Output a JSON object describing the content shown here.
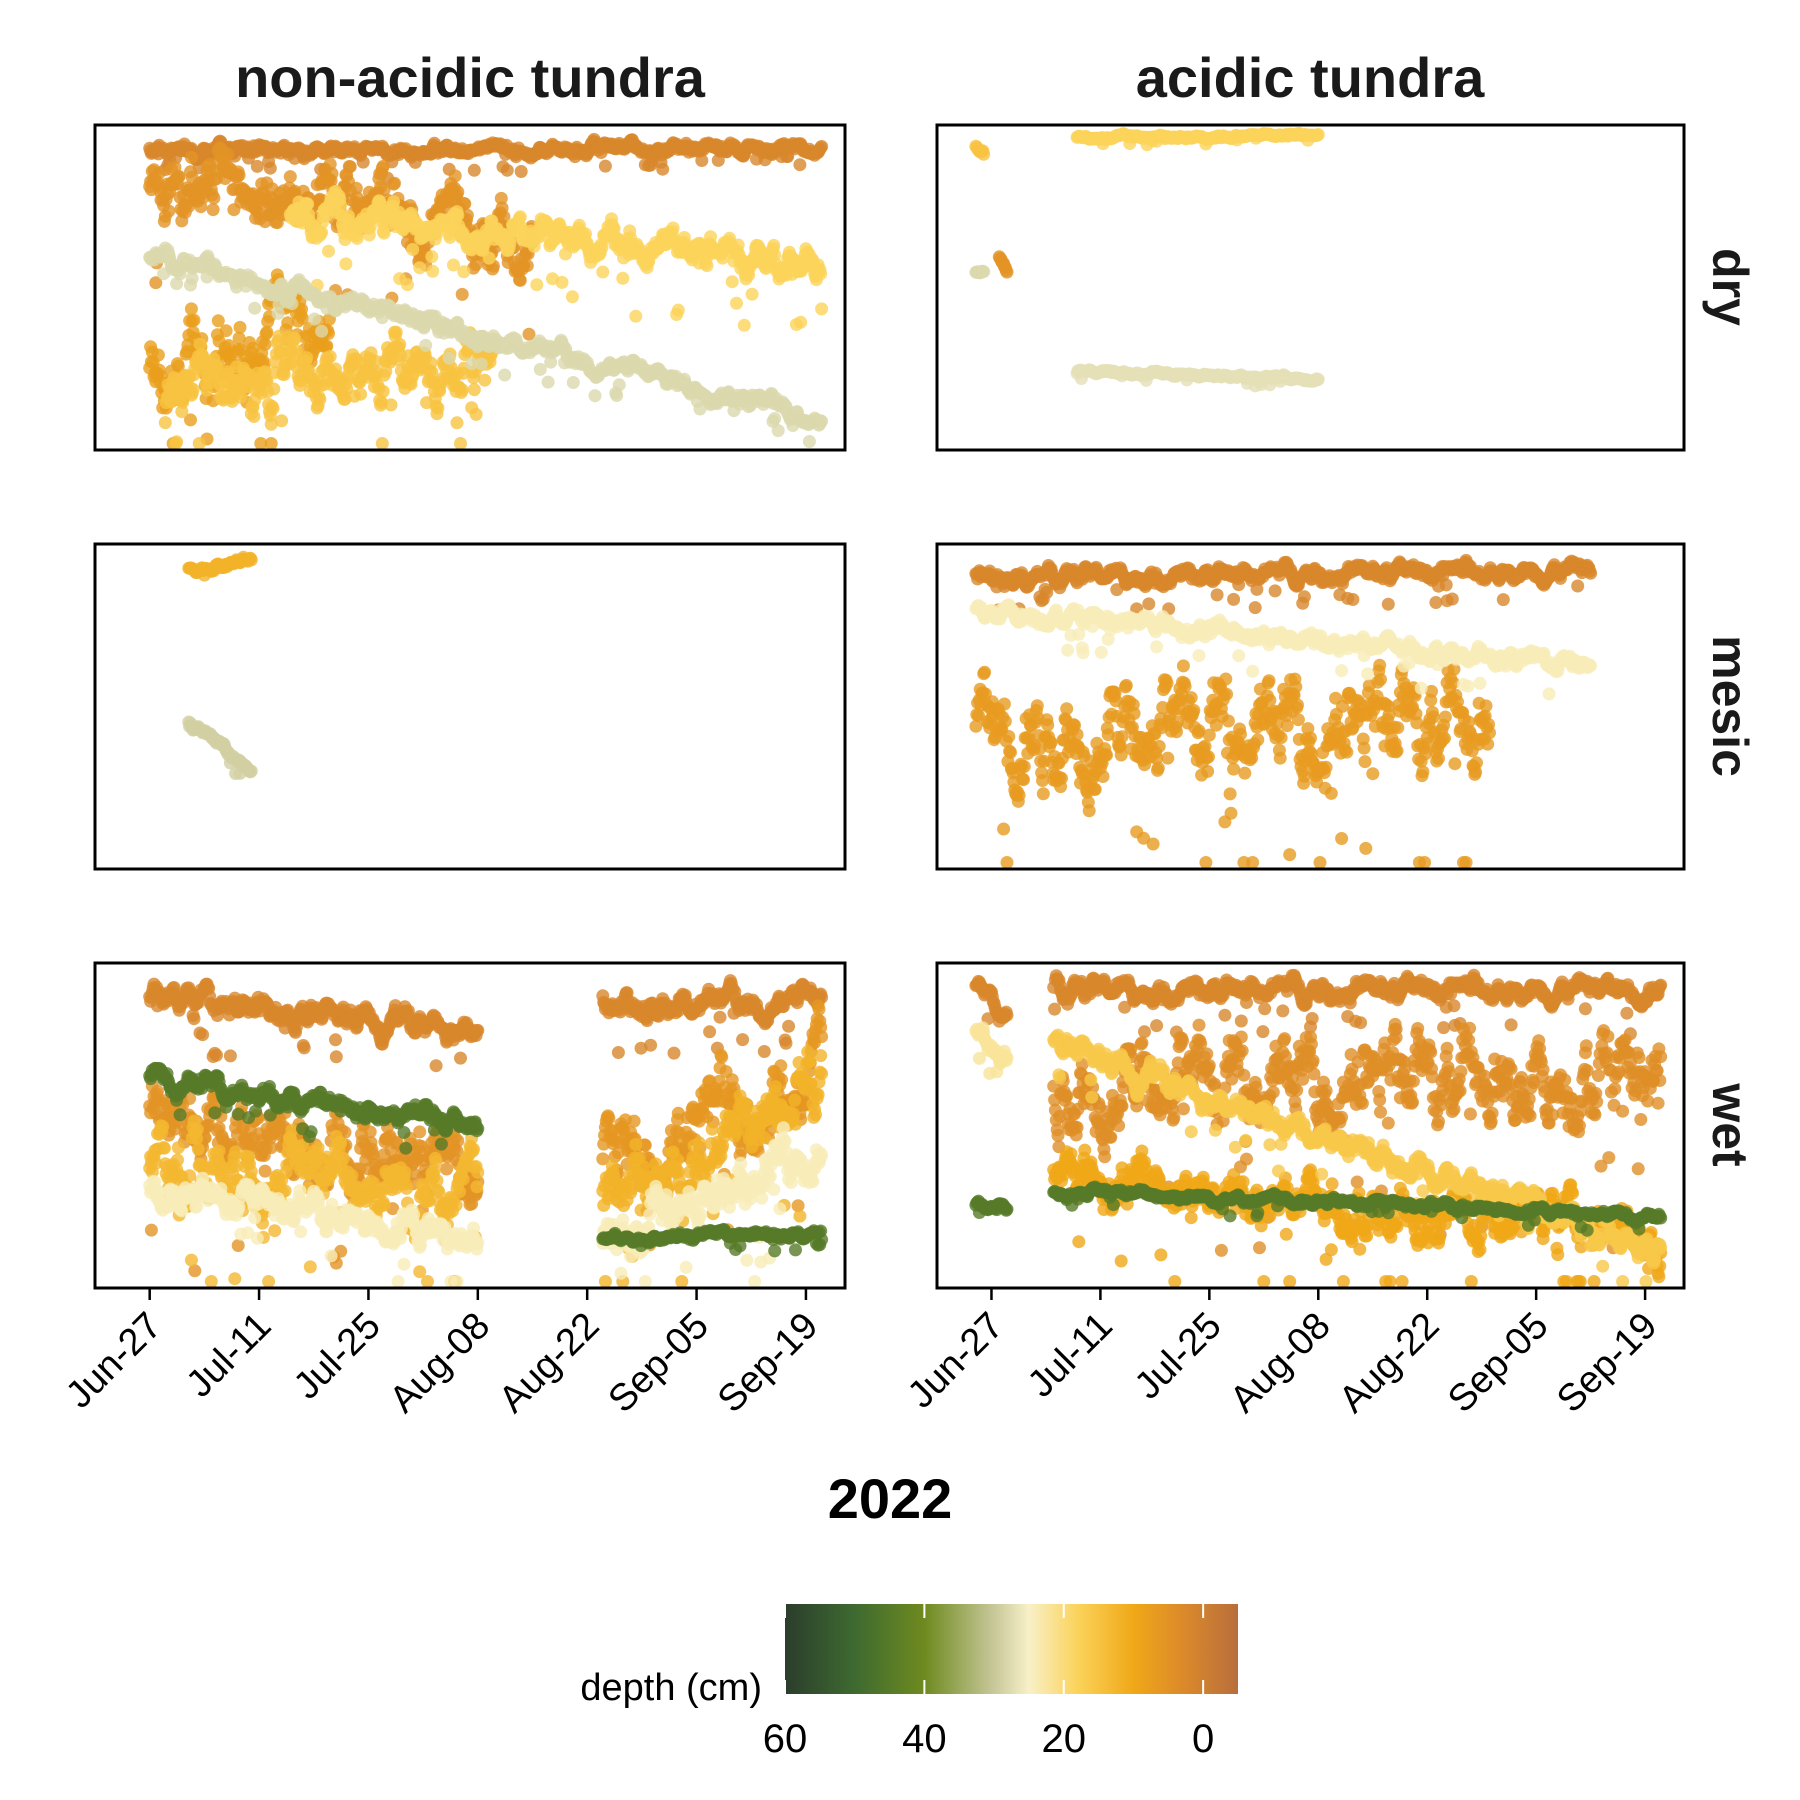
{
  "chart_data": {
    "type": "scatter",
    "x_axis_title": "2022",
    "x_ticks": [
      "Jun-27",
      "Jul-11",
      "Jul-25",
      "Aug-08",
      "Aug-22",
      "Sep-05",
      "Sep-19"
    ],
    "x_range": [
      "2022-06-20",
      "2022-09-24"
    ],
    "facet_columns": [
      "non-acidic tundra",
      "acidic tundra"
    ],
    "facet_rows": [
      "dry",
      "mesic",
      "wet"
    ],
    "y_axis": "unlabeled, no tick labels; relative soil condition per logger",
    "legend": {
      "title": "depth (cm)",
      "placement": "bottom",
      "ticks": [
        "60",
        "40",
        "20",
        "0"
      ],
      "range": [
        60,
        -5
      ],
      "colors": [
        {
          "depth": 60,
          "hex": "#2b3d2c"
        },
        {
          "depth": 50,
          "hex": "#3e6a30"
        },
        {
          "depth": 40,
          "hex": "#6e8a1f"
        },
        {
          "depth": 30,
          "hex": "#c8c89a"
        },
        {
          "depth": 25,
          "hex": "#f8f0c8"
        },
        {
          "depth": 18,
          "hex": "#fbd35a"
        },
        {
          "depth": 10,
          "hex": "#f0a818"
        },
        {
          "depth": 3,
          "hex": "#dc8a2a"
        },
        {
          "depth": -5,
          "hex": "#b86e3c"
        }
      ]
    },
    "panels": [
      {
        "column": "non-acidic tundra",
        "row": "dry",
        "series": [
          {
            "depth": 2,
            "start": "2022-06-27",
            "end": "2022-09-21",
            "y_start": 0.92,
            "y_end": 0.93,
            "noise": 0.03
          },
          {
            "depth": 5,
            "start": "2022-06-27",
            "end": "2022-08-15",
            "y_start": 0.82,
            "y_end": 0.66,
            "noise": 0.18
          },
          {
            "depth": 8,
            "start": "2022-06-27",
            "end": "2022-07-20",
            "y_start": 0.25,
            "y_end": 0.4,
            "noise": 0.2
          },
          {
            "depth": 15,
            "start": "2022-06-29",
            "end": "2022-08-10",
            "y_start": 0.2,
            "y_end": 0.28,
            "noise": 0.14
          },
          {
            "depth": 18,
            "start": "2022-07-15",
            "end": "2022-09-21",
            "y_start": 0.72,
            "y_end": 0.58,
            "noise": 0.08
          },
          {
            "depth": 28,
            "start": "2022-06-27",
            "end": "2022-09-21",
            "y_start": 0.6,
            "y_end": 0.1,
            "noise": 0.04
          }
        ]
      },
      {
        "column": "acidic tundra",
        "row": "dry",
        "series": [
          {
            "depth": 18,
            "start": "2022-07-08",
            "end": "2022-08-08",
            "y_start": 0.96,
            "y_end": 0.97,
            "noise": 0.01
          },
          {
            "depth": 27,
            "start": "2022-07-08",
            "end": "2022-08-08",
            "y_start": 0.24,
            "y_end": 0.22,
            "noise": 0.01
          },
          {
            "depth": 5,
            "start": "2022-06-28",
            "end": "2022-06-29",
            "y_start": 0.6,
            "y_end": 0.55,
            "noise": 0.02
          },
          {
            "depth": 15,
            "start": "2022-06-25",
            "end": "2022-06-26",
            "y_start": 0.93,
            "y_end": 0.9,
            "noise": 0.02
          },
          {
            "depth": 28,
            "start": "2022-06-25",
            "end": "2022-06-26",
            "y_start": 0.55,
            "y_end": 0.55,
            "noise": 0.01
          }
        ]
      },
      {
        "column": "non-acidic tundra",
        "row": "mesic",
        "series": [
          {
            "depth": 12,
            "start": "2022-07-02",
            "end": "2022-07-10",
            "y_start": 0.92,
            "y_end": 0.95,
            "noise": 0.02
          },
          {
            "depth": 29,
            "start": "2022-07-02",
            "end": "2022-07-10",
            "y_start": 0.45,
            "y_end": 0.3,
            "noise": 0.02
          }
        ]
      },
      {
        "column": "acidic tundra",
        "row": "mesic",
        "series": [
          {
            "depth": 2,
            "start": "2022-06-25",
            "end": "2022-09-12",
            "y_start": 0.9,
            "y_end": 0.92,
            "noise": 0.04
          },
          {
            "depth": 7,
            "start": "2022-06-25",
            "end": "2022-08-30",
            "y_start": 0.45,
            "y_end": 0.45,
            "noise": 0.22
          },
          {
            "depth": 24,
            "start": "2022-06-25",
            "end": "2022-09-12",
            "y_start": 0.8,
            "y_end": 0.63,
            "noise": 0.04
          }
        ]
      },
      {
        "column": "non-acidic tundra",
        "row": "wet",
        "series": [
          {
            "depth": 2,
            "start": "2022-06-27",
            "end": "2022-08-08",
            "y_start": 0.88,
            "y_end": 0.8,
            "noise": 0.06
          },
          {
            "depth": 5,
            "start": "2022-06-27",
            "end": "2022-08-08",
            "y_start": 0.55,
            "y_end": 0.35,
            "noise": 0.18
          },
          {
            "depth": 13,
            "start": "2022-06-27",
            "end": "2022-08-08",
            "y_start": 0.4,
            "y_end": 0.3,
            "noise": 0.16
          },
          {
            "depth": 24,
            "start": "2022-06-27",
            "end": "2022-08-08",
            "y_start": 0.3,
            "y_end": 0.15,
            "noise": 0.08
          },
          {
            "depth": 45,
            "start": "2022-06-27",
            "end": "2022-08-08",
            "y_start": 0.65,
            "y_end": 0.5,
            "noise": 0.05
          },
          {
            "depth": 2,
            "start": "2022-08-24",
            "end": "2022-09-21",
            "y_start": 0.88,
            "y_end": 0.88,
            "noise": 0.06
          },
          {
            "depth": 6,
            "start": "2022-08-24",
            "end": "2022-09-21",
            "y_start": 0.4,
            "y_end": 0.65,
            "noise": 0.2
          },
          {
            "depth": 12,
            "start": "2022-08-24",
            "end": "2022-09-21",
            "y_start": 0.3,
            "y_end": 0.6,
            "noise": 0.18
          },
          {
            "depth": 24,
            "start": "2022-08-24",
            "end": "2022-09-21",
            "y_start": 0.12,
            "y_end": 0.45,
            "noise": 0.12
          },
          {
            "depth": 45,
            "start": "2022-08-24",
            "end": "2022-09-21",
            "y_start": 0.15,
            "y_end": 0.17,
            "noise": 0.02
          }
        ]
      },
      {
        "column": "acidic tundra",
        "row": "wet",
        "series": [
          {
            "depth": 2,
            "start": "2022-07-05",
            "end": "2022-09-21",
            "y_start": 0.92,
            "y_end": 0.92,
            "noise": 0.05
          },
          {
            "depth": 4,
            "start": "2022-07-05",
            "end": "2022-09-21",
            "y_start": 0.65,
            "y_end": 0.65,
            "noise": 0.2
          },
          {
            "depth": 10,
            "start": "2022-07-05",
            "end": "2022-09-21",
            "y_start": 0.35,
            "y_end": 0.15,
            "noise": 0.12
          },
          {
            "depth": 16,
            "start": "2022-07-05",
            "end": "2022-09-21",
            "y_start": 0.75,
            "y_end": 0.12,
            "noise": 0.06
          },
          {
            "depth": 45,
            "start": "2022-07-05",
            "end": "2022-09-21",
            "y_start": 0.3,
            "y_end": 0.22,
            "noise": 0.02
          },
          {
            "depth": 2,
            "start": "2022-06-25",
            "end": "2022-06-29",
            "y_start": 0.92,
            "y_end": 0.85,
            "noise": 0.04
          },
          {
            "depth": 22,
            "start": "2022-06-25",
            "end": "2022-06-29",
            "y_start": 0.8,
            "y_end": 0.7,
            "noise": 0.06
          },
          {
            "depth": 45,
            "start": "2022-06-25",
            "end": "2022-06-29",
            "y_start": 0.26,
            "y_end": 0.25,
            "noise": 0.02
          }
        ]
      }
    ]
  }
}
